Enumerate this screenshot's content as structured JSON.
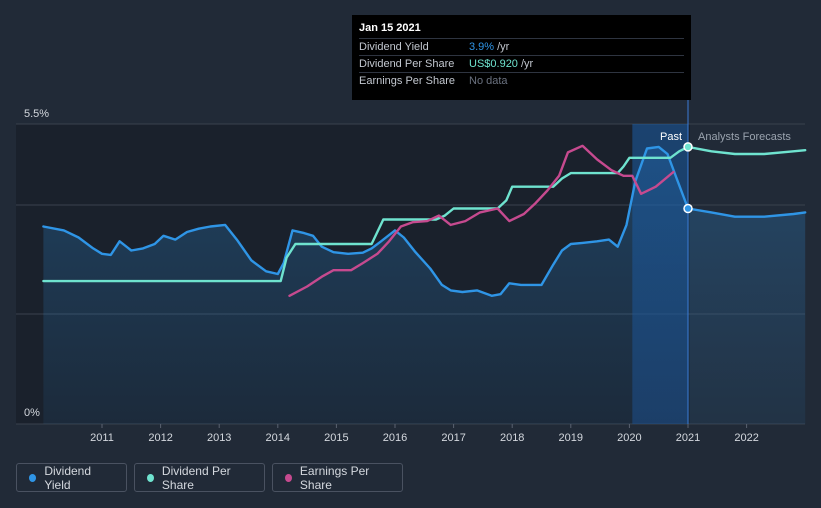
{
  "chart_data": {
    "type": "line",
    "x_ticks": [
      "2011",
      "2012",
      "2013",
      "2014",
      "2015",
      "2016",
      "2017",
      "2018",
      "2019",
      "2020",
      "2021",
      "2022"
    ],
    "y_labels": {
      "top": "5.5%",
      "bottom": "0%"
    },
    "ylim": [
      0,
      5.5
    ],
    "period_labels": {
      "past": "Past",
      "forecast": "Analysts Forecasts"
    },
    "series": [
      {
        "name": "Dividend Yield",
        "color": "#2f95e6",
        "unit": "%",
        "points": [
          [
            2010.0,
            3.62
          ],
          [
            2010.35,
            3.55
          ],
          [
            2010.6,
            3.42
          ],
          [
            2010.85,
            3.22
          ],
          [
            2011.0,
            3.12
          ],
          [
            2011.15,
            3.1
          ],
          [
            2011.3,
            3.35
          ],
          [
            2011.5,
            3.18
          ],
          [
            2011.7,
            3.22
          ],
          [
            2011.9,
            3.3
          ],
          [
            2012.05,
            3.45
          ],
          [
            2012.25,
            3.38
          ],
          [
            2012.45,
            3.52
          ],
          [
            2012.65,
            3.58
          ],
          [
            2012.85,
            3.62
          ],
          [
            2013.1,
            3.65
          ],
          [
            2013.3,
            3.38
          ],
          [
            2013.55,
            3.0
          ],
          [
            2013.8,
            2.8
          ],
          [
            2014.0,
            2.75
          ],
          [
            2014.1,
            2.95
          ],
          [
            2014.25,
            3.55
          ],
          [
            2014.45,
            3.5
          ],
          [
            2014.6,
            3.45
          ],
          [
            2014.75,
            3.25
          ],
          [
            2014.95,
            3.15
          ],
          [
            2015.2,
            3.12
          ],
          [
            2015.45,
            3.14
          ],
          [
            2015.6,
            3.22
          ],
          [
            2015.8,
            3.38
          ],
          [
            2016.0,
            3.55
          ],
          [
            2016.15,
            3.42
          ],
          [
            2016.35,
            3.15
          ],
          [
            2016.6,
            2.85
          ],
          [
            2016.8,
            2.55
          ],
          [
            2016.95,
            2.45
          ],
          [
            2017.15,
            2.42
          ],
          [
            2017.4,
            2.45
          ],
          [
            2017.65,
            2.35
          ],
          [
            2017.8,
            2.38
          ],
          [
            2017.95,
            2.58
          ],
          [
            2018.15,
            2.55
          ],
          [
            2018.5,
            2.55
          ],
          [
            2018.7,
            2.92
          ],
          [
            2018.85,
            3.18
          ],
          [
            2019.0,
            3.3
          ],
          [
            2019.2,
            3.32
          ],
          [
            2019.45,
            3.35
          ],
          [
            2019.65,
            3.38
          ],
          [
            2019.8,
            3.25
          ],
          [
            2019.95,
            3.65
          ],
          [
            2020.1,
            4.45
          ],
          [
            2020.3,
            5.05
          ],
          [
            2020.5,
            5.08
          ],
          [
            2020.65,
            4.95
          ],
          [
            2020.8,
            4.52
          ],
          [
            2021.0,
            3.95
          ],
          [
            2021.4,
            3.88
          ],
          [
            2021.8,
            3.8
          ],
          [
            2022.3,
            3.8
          ],
          [
            2022.8,
            3.85
          ],
          [
            2023.0,
            3.88
          ]
        ]
      },
      {
        "name": "Dividend Per Share",
        "color": "#6fe3cf",
        "unit": "US$",
        "points": [
          [
            2010.0,
            2.62
          ],
          [
            2014.05,
            2.62
          ],
          [
            2014.15,
            3.05
          ],
          [
            2014.3,
            3.3
          ],
          [
            2015.6,
            3.3
          ],
          [
            2015.8,
            3.75
          ],
          [
            2016.7,
            3.75
          ],
          [
            2016.85,
            3.82
          ],
          [
            2017.0,
            3.95
          ],
          [
            2017.75,
            3.95
          ],
          [
            2017.9,
            4.1
          ],
          [
            2018.0,
            4.35
          ],
          [
            2018.7,
            4.35
          ],
          [
            2018.85,
            4.5
          ],
          [
            2019.0,
            4.6
          ],
          [
            2019.8,
            4.6
          ],
          [
            2019.9,
            4.72
          ],
          [
            2020.0,
            4.88
          ],
          [
            2020.7,
            4.88
          ],
          [
            2020.85,
            5.0
          ],
          [
            2021.0,
            5.08
          ],
          [
            2021.4,
            5.0
          ],
          [
            2021.8,
            4.95
          ],
          [
            2022.3,
            4.95
          ],
          [
            2022.8,
            5.0
          ],
          [
            2023.0,
            5.02
          ]
        ]
      },
      {
        "name": "Earnings Per Share",
        "color": "#c64a8f",
        "unit": "US$",
        "points": [
          [
            2014.2,
            2.35
          ],
          [
            2014.5,
            2.52
          ],
          [
            2014.75,
            2.7
          ],
          [
            2014.95,
            2.82
          ],
          [
            2015.25,
            2.82
          ],
          [
            2015.45,
            2.95
          ],
          [
            2015.7,
            3.12
          ],
          [
            2015.9,
            3.35
          ],
          [
            2016.1,
            3.62
          ],
          [
            2016.3,
            3.7
          ],
          [
            2016.55,
            3.72
          ],
          [
            2016.75,
            3.82
          ],
          [
            2016.95,
            3.65
          ],
          [
            2017.2,
            3.72
          ],
          [
            2017.45,
            3.88
          ],
          [
            2017.75,
            3.95
          ],
          [
            2017.95,
            3.72
          ],
          [
            2018.2,
            3.85
          ],
          [
            2018.4,
            4.05
          ],
          [
            2018.6,
            4.28
          ],
          [
            2018.8,
            4.55
          ],
          [
            2018.95,
            4.98
          ],
          [
            2019.2,
            5.1
          ],
          [
            2019.45,
            4.85
          ],
          [
            2019.7,
            4.65
          ],
          [
            2019.9,
            4.55
          ],
          [
            2020.05,
            4.55
          ],
          [
            2020.2,
            4.22
          ],
          [
            2020.45,
            4.35
          ],
          [
            2020.75,
            4.62
          ]
        ]
      }
    ],
    "past_forecast_divider_year": 2021.0,
    "highlight_start_year": 2020.05
  },
  "tooltip": {
    "date": "Jan 15 2021",
    "rows": [
      {
        "label": "Dividend Yield",
        "value": "3.9%",
        "unit": "/yr"
      },
      {
        "label": "Dividend Per Share",
        "value": "US$0.920",
        "unit": "/yr"
      },
      {
        "label": "Earnings Per Share",
        "value": "No data",
        "unit": ""
      }
    ]
  },
  "legend": [
    {
      "label": "Dividend Yield",
      "color": "#2f95e6"
    },
    {
      "label": "Dividend Per Share",
      "color": "#6fe3cf"
    },
    {
      "label": "Earnings Per Share",
      "color": "#c64a8f"
    }
  ]
}
